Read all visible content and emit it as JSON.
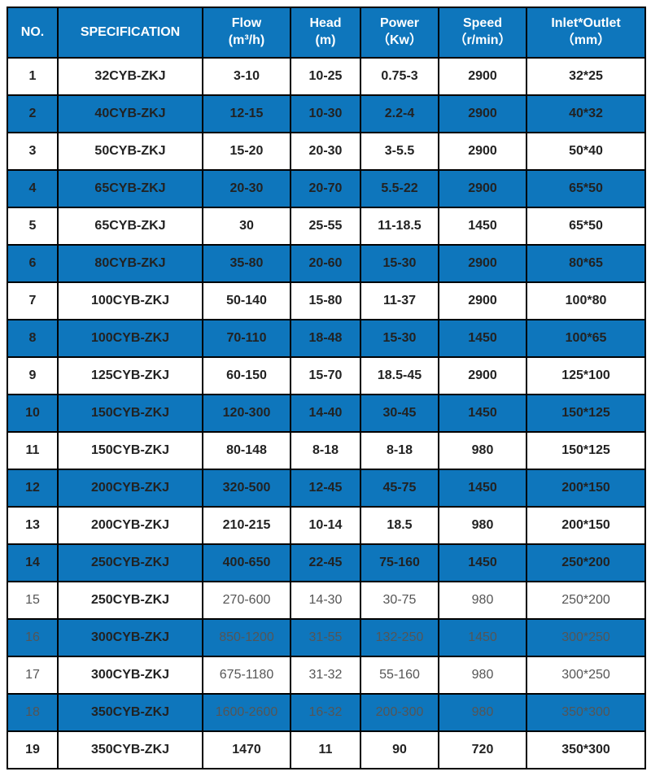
{
  "table": {
    "header_bg": "#0e76bc",
    "header_fg": "#ffffff",
    "row_blue_bg": "#0e76bc",
    "row_white_bg": "#ffffff",
    "border_color": "#000000",
    "columns": [
      {
        "key": "no",
        "label": "NO."
      },
      {
        "key": "spec",
        "label": "SPECIFICATION"
      },
      {
        "key": "flow",
        "label": "Flow\n(m³/h)"
      },
      {
        "key": "head",
        "label": "Head\n(m)"
      },
      {
        "key": "power",
        "label": "Power\n（Kw）"
      },
      {
        "key": "speed",
        "label": "Speed\n（r/min）"
      },
      {
        "key": "inout",
        "label": "Inlet*Outlet\n（mm）"
      }
    ],
    "rows": [
      {
        "no": "1",
        "spec": "32CYB-ZKJ",
        "flow": "3-10",
        "head": "10-25",
        "power": "0.75-3",
        "speed": "2900",
        "inout": "32*25",
        "stripe": "white"
      },
      {
        "no": "2",
        "spec": "40CYB-ZKJ",
        "flow": "12-15",
        "head": "10-30",
        "power": "2.2-4",
        "speed": "2900",
        "inout": "40*32",
        "stripe": "blue"
      },
      {
        "no": "3",
        "spec": "50CYB-ZKJ",
        "flow": "15-20",
        "head": "20-30",
        "power": "3-5.5",
        "speed": "2900",
        "inout": "50*40",
        "stripe": "white"
      },
      {
        "no": "4",
        "spec": "65CYB-ZKJ",
        "flow": "20-30",
        "head": "20-70",
        "power": "5.5-22",
        "speed": "2900",
        "inout": "65*50",
        "stripe": "blue"
      },
      {
        "no": "5",
        "spec": "65CYB-ZKJ",
        "flow": "30",
        "head": "25-55",
        "power": "11-18.5",
        "speed": "1450",
        "inout": "65*50",
        "stripe": "white"
      },
      {
        "no": "6",
        "spec": "80CYB-ZKJ",
        "flow": "35-80",
        "head": "20-60",
        "power": "15-30",
        "speed": "2900",
        "inout": "80*65",
        "stripe": "blue"
      },
      {
        "no": "7",
        "spec": "100CYB-ZKJ",
        "flow": "50-140",
        "head": "15-80",
        "power": "11-37",
        "speed": "2900",
        "inout": "100*80",
        "stripe": "white"
      },
      {
        "no": "8",
        "spec": "100CYB-ZKJ",
        "flow": "70-110",
        "head": "18-48",
        "power": "15-30",
        "speed": "1450",
        "inout": "100*65",
        "stripe": "blue"
      },
      {
        "no": "9",
        "spec": "125CYB-ZKJ",
        "flow": "60-150",
        "head": "15-70",
        "power": "18.5-45",
        "speed": "2900",
        "inout": "125*100",
        "stripe": "white"
      },
      {
        "no": "10",
        "spec": "150CYB-ZKJ",
        "flow": "120-300",
        "head": "14-40",
        "power": "30-45",
        "speed": "1450",
        "inout": "150*125",
        "stripe": "blue"
      },
      {
        "no": "11",
        "spec": "150CYB-ZKJ",
        "flow": "80-148",
        "head": "8-18",
        "power": "8-18",
        "speed": "980",
        "inout": "150*125",
        "stripe": "white"
      },
      {
        "no": "12",
        "spec": "200CYB-ZKJ",
        "flow": "320-500",
        "head": "12-45",
        "power": "45-75",
        "speed": "1450",
        "inout": "200*150",
        "stripe": "blue"
      },
      {
        "no": "13",
        "spec": "200CYB-ZKJ",
        "flow": "210-215",
        "head": "10-14",
        "power": "18.5",
        "speed": "980",
        "inout": "200*150",
        "stripe": "white"
      },
      {
        "no": "14",
        "spec": "250CYB-ZKJ",
        "flow": "400-650",
        "head": "22-45",
        "power": "75-160",
        "speed": "1450",
        "inout": "250*200",
        "stripe": "blue"
      },
      {
        "no": "15",
        "spec": "250CYB-ZKJ",
        "flow": "270-600",
        "head": "14-30",
        "power": "30-75",
        "speed": "980",
        "inout": "250*200",
        "stripe": "white",
        "faded": true
      },
      {
        "no": "16",
        "spec": "300CYB-ZKJ",
        "flow": "850-1200",
        "head": "31-55",
        "power": "132-250",
        "speed": "1450",
        "inout": "300*250",
        "stripe": "blue",
        "faded": true
      },
      {
        "no": "17",
        "spec": "300CYB-ZKJ",
        "flow": "675-1180",
        "head": "31-32",
        "power": "55-160",
        "speed": "980",
        "inout": "300*250",
        "stripe": "white",
        "faded": true
      },
      {
        "no": "18",
        "spec": "350CYB-ZKJ",
        "flow": "1600-2600",
        "head": "16-32",
        "power": "200-300",
        "speed": "980",
        "inout": "350*300",
        "stripe": "blue",
        "faded": true
      },
      {
        "no": "19",
        "spec": "350CYB-ZKJ",
        "flow": "1470",
        "head": "11",
        "power": "90",
        "speed": "720",
        "inout": "350*300",
        "stripe": "white"
      }
    ]
  }
}
